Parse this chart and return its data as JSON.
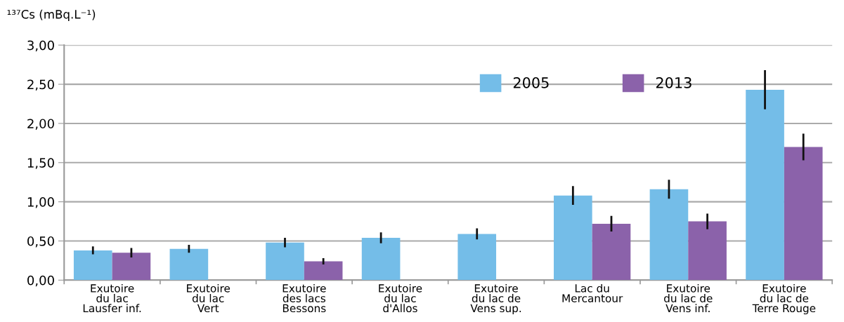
{
  "chart_data": {
    "type": "bar",
    "ylabel": "¹³⁷Cs (mBq.L⁻¹)",
    "categories": [
      "Exutoire\ndu lac\nLausfer inf.",
      "Exutoire\ndu lac\nVert",
      "Exutoire\ndes lacs\nBessons",
      "Exutoire\ndu lac\nd'Allos",
      "Exutoire\ndu lac de\nVens sup.",
      "Lac du\nMercantour",
      "Exutoire\ndu lac de\nVens inf.",
      "Exutoire\ndu lac de\nTerre Rouge"
    ],
    "series": [
      {
        "name": "2005",
        "color": "#74bde8",
        "values": [
          0.38,
          0.4,
          0.48,
          0.54,
          0.59,
          1.08,
          1.16,
          2.43
        ],
        "errors": [
          0.05,
          0.05,
          0.06,
          0.07,
          0.07,
          0.12,
          0.12,
          0.25
        ]
      },
      {
        "name": "2013",
        "color": "#8b62aa",
        "values": [
          0.35,
          null,
          0.24,
          null,
          null,
          0.72,
          0.75,
          1.7
        ],
        "errors": [
          0.06,
          null,
          0.04,
          null,
          null,
          0.1,
          0.1,
          0.17
        ]
      }
    ],
    "ylim": [
      0,
      3
    ],
    "yticks": [
      {
        "value": 0,
        "label": "0,00"
      },
      {
        "value": 0.5,
        "label": "0,50"
      },
      {
        "value": 1,
        "label": "1,00"
      },
      {
        "value": 1.5,
        "label": "1,50"
      },
      {
        "value": 2,
        "label": "2,00"
      },
      {
        "value": 2.5,
        "label": "2,50"
      },
      {
        "value": 3,
        "label": "3,00"
      }
    ],
    "grid": "y",
    "legend": "top"
  }
}
